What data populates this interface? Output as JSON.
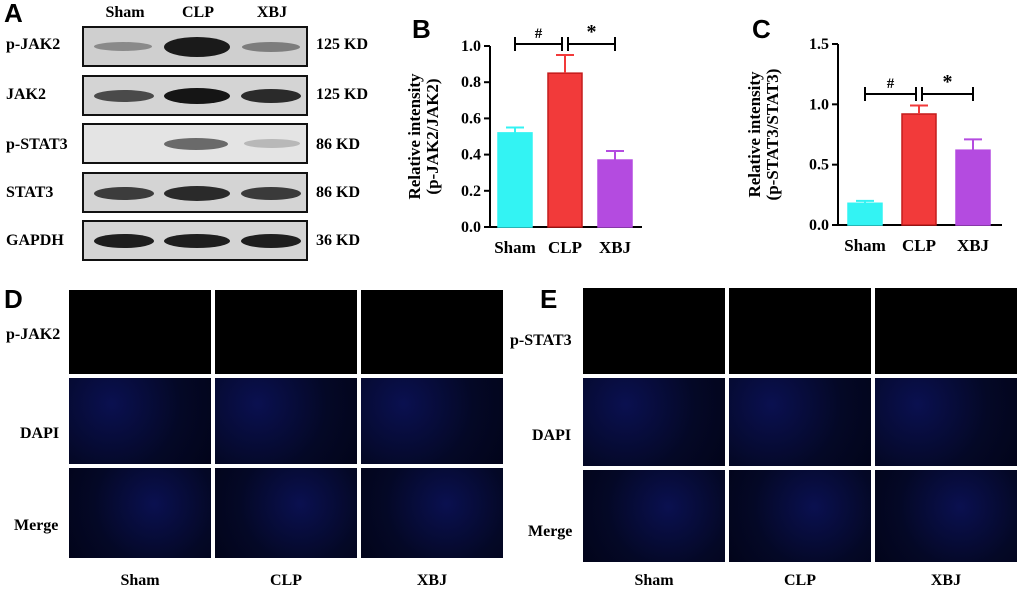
{
  "panel_letters": {
    "a": "A",
    "b": "B",
    "c": "C",
    "d": "D",
    "e": "E"
  },
  "western_blot": {
    "groups": [
      "Sham",
      "CLP",
      "XBJ"
    ],
    "rows": [
      {
        "label": "p-JAK2",
        "size": "125 KD"
      },
      {
        "label": "JAK2",
        "size": "125 KD"
      },
      {
        "label": "p-STAT3",
        "size": "86 KD"
      },
      {
        "label": "STAT3",
        "size": "86 KD"
      },
      {
        "label": "GAPDH",
        "size": "36 KD"
      }
    ]
  },
  "chart_data": [
    {
      "type": "bar",
      "panel": "B",
      "categories": [
        "Sham",
        "CLP",
        "XBJ"
      ],
      "values": [
        0.52,
        0.85,
        0.37
      ],
      "errors": [
        0.03,
        0.1,
        0.05
      ],
      "ylabel_line1": "Relative intensity",
      "ylabel_line2": "(p-JAK2/JAK2)",
      "ylim": [
        0,
        1.0
      ],
      "yticks": [
        "0.0",
        "0.2",
        "0.4",
        "0.6",
        "0.8",
        "1.0"
      ],
      "significance": [
        {
          "from": "Sham",
          "to": "CLP",
          "label": "#"
        },
        {
          "from": "CLP",
          "to": "XBJ",
          "label": "*"
        }
      ],
      "colors": [
        "#33f3f3",
        "#f23a3a",
        "#b44be0"
      ]
    },
    {
      "type": "bar",
      "panel": "C",
      "categories": [
        "Sham",
        "CLP",
        "XBJ"
      ],
      "values": [
        0.18,
        0.92,
        0.62
      ],
      "errors": [
        0.02,
        0.07,
        0.09
      ],
      "ylabel_line1": "Relative intensity",
      "ylabel_line2": "(p-STAT3/STAT3)",
      "ylim": [
        0,
        1.5
      ],
      "yticks": [
        "0.0",
        "0.5",
        "1.0",
        "1.5"
      ],
      "significance": [
        {
          "from": "Sham",
          "to": "CLP",
          "label": "#"
        },
        {
          "from": "CLP",
          "to": "XBJ",
          "label": "*"
        }
      ],
      "colors": [
        "#33f3f3",
        "#f23a3a",
        "#b44be0"
      ]
    }
  ],
  "fluorescence_d": {
    "rows": [
      "p-JAK2",
      "DAPI",
      "Merge"
    ],
    "columns": [
      "Sham",
      "CLP",
      "XBJ"
    ]
  },
  "fluorescence_e": {
    "rows": [
      "p-STAT3",
      "DAPI",
      "Merge"
    ],
    "columns": [
      "Sham",
      "CLP",
      "XBJ"
    ]
  }
}
